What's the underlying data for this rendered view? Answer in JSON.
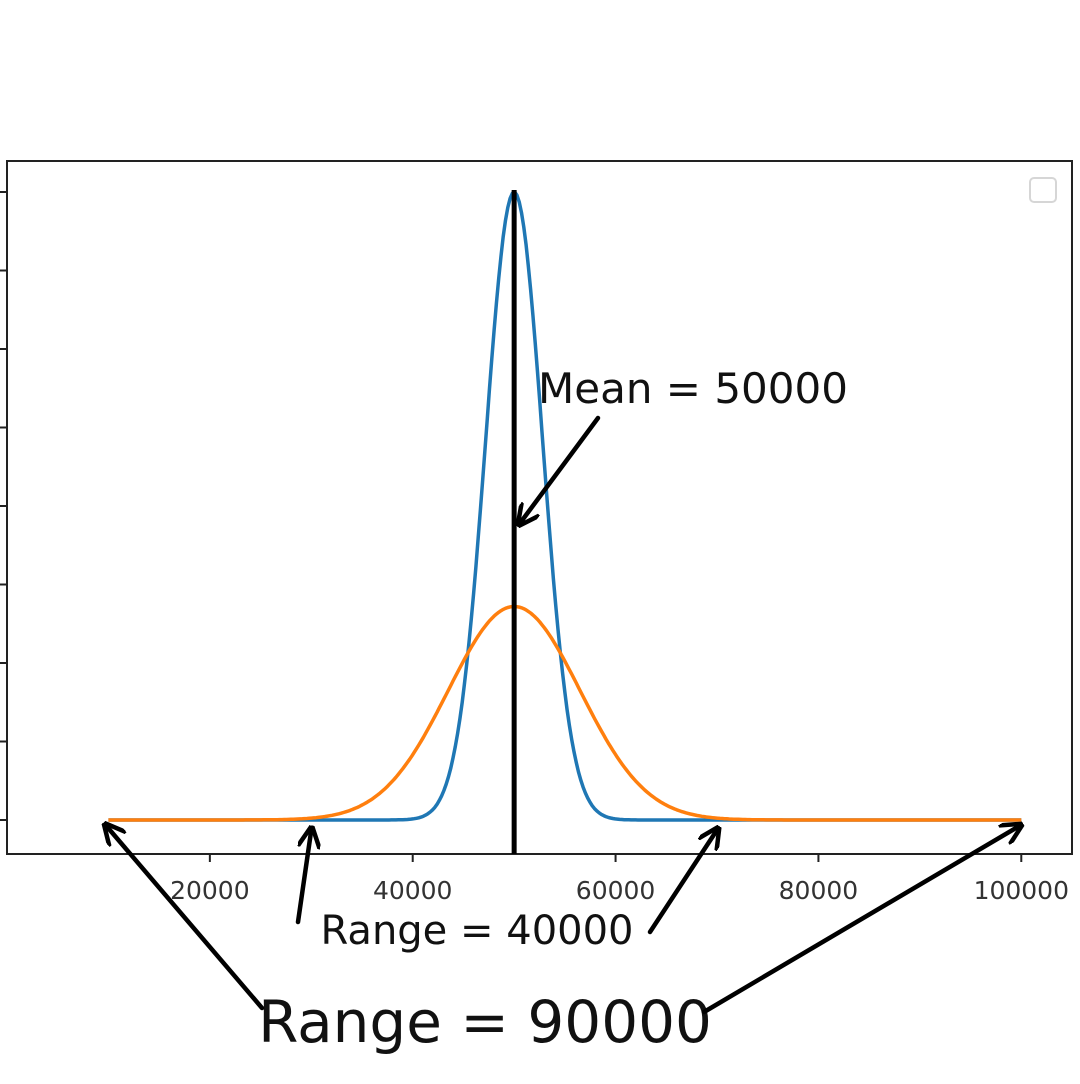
{
  "chart_data": {
    "type": "line",
    "title": "",
    "xlabel": "",
    "ylabel": "",
    "xlim": [
      0,
      105000
    ],
    "ylim": [
      0,
      1
    ],
    "x_ticks": [
      20000,
      40000,
      60000,
      80000,
      100000
    ],
    "x_tick_labels": [
      "20000",
      "40000",
      "60000",
      "80000",
      "100000"
    ],
    "y_tick_count": 9,
    "grid": false,
    "legend": {
      "placement": "top-right",
      "entries": []
    },
    "series": [
      {
        "color": "#1f77b4",
        "kind": "normal",
        "mean": 50000,
        "sd": 2800,
        "peak": 1.0,
        "x_range": [
          10000,
          100000
        ]
      },
      {
        "color": "#ff7f0e",
        "kind": "normal",
        "mean": 50000,
        "sd": 6500,
        "peak": 0.34,
        "x_range": [
          10000,
          100000
        ]
      }
    ],
    "mean_line": {
      "x": 50000,
      "color": "#000000"
    },
    "annotations": [
      {
        "id": "mean",
        "text": "Mean = 50000",
        "target_x": 50000
      },
      {
        "id": "range_inner",
        "text": "Range = 40000",
        "targets_x": [
          30000,
          70000
        ]
      },
      {
        "id": "range_outer",
        "text": "Range = 90000",
        "targets_x": [
          10000,
          100000
        ]
      }
    ]
  }
}
